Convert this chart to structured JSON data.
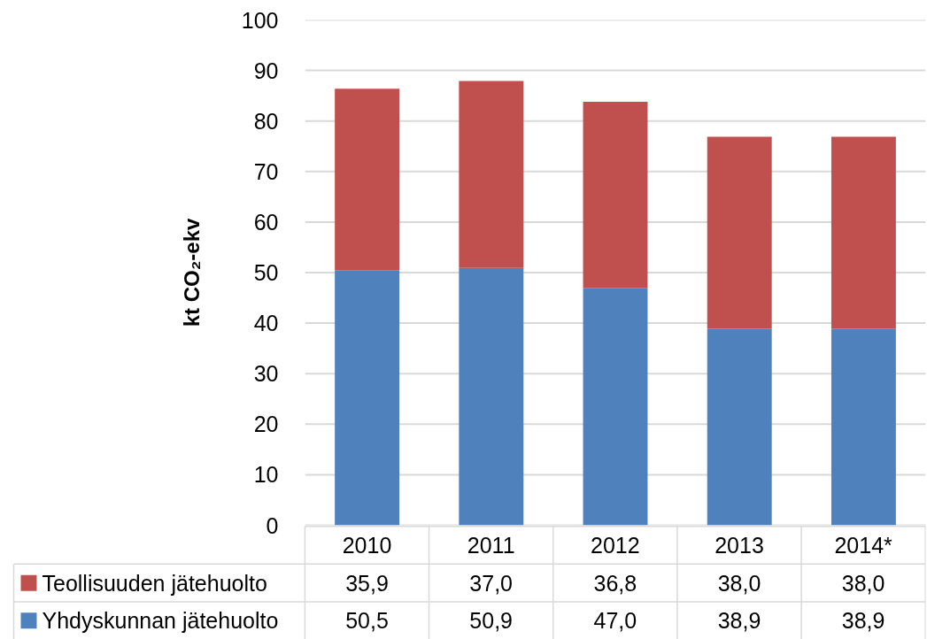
{
  "chart_data": {
    "type": "bar",
    "stacked": true,
    "ylabel": "kt CO₂-ekv",
    "categories": [
      "2010",
      "2011",
      "2012",
      "2013",
      "2014*"
    ],
    "series": [
      {
        "name": "Yhdyskunnan jätehuolto",
        "color": "#4f81bd",
        "values": [
          50.5,
          50.9,
          47.0,
          38.9,
          38.9
        ],
        "value_labels": [
          "50,5",
          "50,9",
          "47,0",
          "38,9",
          "38,9"
        ]
      },
      {
        "name": "Teollisuuden jätehuolto",
        "color": "#c0504d",
        "values": [
          35.9,
          37.0,
          36.8,
          38.0,
          38.0
        ],
        "value_labels": [
          "35,9",
          "37,0",
          "36,8",
          "38,0",
          "38,0"
        ]
      }
    ],
    "ylim": [
      0,
      100
    ],
    "yticks": [
      0,
      10,
      20,
      30,
      40,
      50,
      60,
      70,
      80,
      90,
      100
    ],
    "grid": "y",
    "legend": "bottom"
  }
}
